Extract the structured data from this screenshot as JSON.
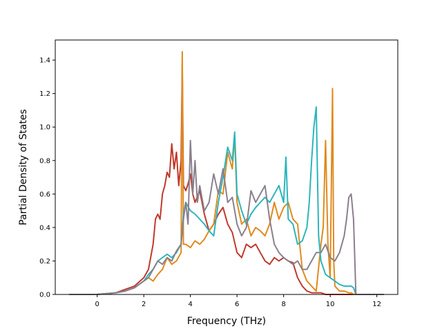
{
  "chart_data": {
    "type": "line",
    "title": "",
    "xlabel": "Frequency (THz)",
    "ylabel": "Partial Density of States",
    "xlim": [
      -1.8,
      12.9
    ],
    "ylim": [
      0.0,
      1.52
    ],
    "xticks": [
      0,
      2,
      4,
      6,
      8,
      10,
      12
    ],
    "yticks": [
      0.0,
      0.2,
      0.4,
      0.6,
      0.8,
      1.0,
      1.2,
      1.4
    ],
    "xtick_labels": [
      "0",
      "2",
      "4",
      "6",
      "8",
      "10",
      "12"
    ],
    "ytick_labels": [
      "0.0",
      "0.2",
      "0.4",
      "0.6",
      "0.8",
      "1.0",
      "1.2",
      "1.4"
    ],
    "grid": false,
    "legend": "none",
    "series": [
      {
        "color": "#c0392b",
        "x": [
          -1.2,
          0,
          0.8,
          1.2,
          1.6,
          2.0,
          2.2,
          2.4,
          2.5,
          2.6,
          2.7,
          2.8,
          2.9,
          3.0,
          3.1,
          3.2,
          3.3,
          3.4,
          3.5,
          3.6,
          3.65,
          3.7,
          3.8,
          3.9,
          4.0,
          4.1,
          4.2,
          4.4,
          4.6,
          4.8,
          5.0,
          5.2,
          5.4,
          5.6,
          5.8,
          6.0,
          6.2,
          6.4,
          6.6,
          6.8,
          7.0,
          7.2,
          7.4,
          7.6,
          7.8,
          8.0,
          8.2,
          8.4,
          8.6,
          8.8,
          9.0,
          9.2,
          9.4,
          9.6,
          9.8,
          10.0,
          10.2,
          10.4,
          10.6,
          10.8,
          10.9,
          11.0,
          11.2,
          12.3
        ],
        "y": [
          0.0,
          0.0,
          0.01,
          0.03,
          0.05,
          0.1,
          0.15,
          0.3,
          0.45,
          0.48,
          0.45,
          0.6,
          0.65,
          0.73,
          0.7,
          0.9,
          0.75,
          0.85,
          0.65,
          0.8,
          1.38,
          0.65,
          0.62,
          0.66,
          0.72,
          0.6,
          0.55,
          0.62,
          0.48,
          0.38,
          0.42,
          0.48,
          0.52,
          0.42,
          0.37,
          0.25,
          0.22,
          0.3,
          0.28,
          0.3,
          0.25,
          0.2,
          0.18,
          0.22,
          0.2,
          0.22,
          0.2,
          0.19,
          0.1,
          0.05,
          0.02,
          0.01,
          0.01,
          0.01,
          0.0,
          0.0,
          0.0,
          0.0,
          0.0,
          0.0,
          0.0,
          0.0,
          0.0,
          0.0
        ]
      },
      {
        "color": "#e08a1e",
        "x": [
          -1.2,
          0,
          0.8,
          1.2,
          1.6,
          2.0,
          2.2,
          2.4,
          2.6,
          2.8,
          3.0,
          3.2,
          3.4,
          3.6,
          3.65,
          3.7,
          3.8,
          4.0,
          4.2,
          4.4,
          4.6,
          4.8,
          5.0,
          5.2,
          5.4,
          5.6,
          5.8,
          5.9,
          6.0,
          6.2,
          6.4,
          6.6,
          6.8,
          7.0,
          7.2,
          7.4,
          7.6,
          7.8,
          8.0,
          8.2,
          8.4,
          8.6,
          8.8,
          9.0,
          9.2,
          9.4,
          9.6,
          9.7,
          9.8,
          9.9,
          10.0,
          10.1,
          10.15,
          10.2,
          10.4,
          10.6,
          10.8,
          10.9,
          11.0,
          11.2,
          12.3
        ],
        "y": [
          0.0,
          0.0,
          0.01,
          0.02,
          0.04,
          0.08,
          0.1,
          0.08,
          0.12,
          0.15,
          0.22,
          0.18,
          0.2,
          0.25,
          1.45,
          0.3,
          0.3,
          0.28,
          0.32,
          0.3,
          0.33,
          0.38,
          0.42,
          0.62,
          0.6,
          0.85,
          0.75,
          0.95,
          0.55,
          0.42,
          0.45,
          0.35,
          0.4,
          0.38,
          0.35,
          0.42,
          0.55,
          0.45,
          0.52,
          0.55,
          0.45,
          0.42,
          0.15,
          0.08,
          0.05,
          0.02,
          0.3,
          0.4,
          0.92,
          0.3,
          0.1,
          1.23,
          0.2,
          0.05,
          0.02,
          0.02,
          0.01,
          0.01,
          0.0,
          0.0,
          0.0
        ]
      },
      {
        "color": "#2bb5bd",
        "x": [
          -1.2,
          0,
          0.8,
          1.2,
          1.6,
          2.0,
          2.2,
          2.4,
          2.6,
          2.8,
          3.0,
          3.2,
          3.4,
          3.6,
          3.7,
          3.8,
          4.0,
          4.2,
          4.4,
          4.6,
          4.8,
          5.0,
          5.2,
          5.4,
          5.6,
          5.8,
          5.9,
          6.0,
          6.2,
          6.4,
          6.6,
          6.8,
          7.0,
          7.2,
          7.4,
          7.6,
          7.8,
          8.0,
          8.1,
          8.2,
          8.4,
          8.6,
          8.8,
          9.0,
          9.1,
          9.2,
          9.3,
          9.4,
          9.5,
          9.6,
          9.8,
          10.0,
          10.2,
          10.4,
          10.6,
          10.8,
          10.9,
          11.0,
          11.1,
          12.3
        ],
        "y": [
          0.0,
          0.0,
          0.01,
          0.02,
          0.04,
          0.08,
          0.12,
          0.15,
          0.2,
          0.22,
          0.24,
          0.22,
          0.25,
          0.3,
          0.48,
          0.55,
          0.5,
          0.48,
          0.45,
          0.42,
          0.38,
          0.35,
          0.55,
          0.7,
          0.88,
          0.8,
          0.97,
          0.6,
          0.5,
          0.42,
          0.48,
          0.52,
          0.55,
          0.58,
          0.55,
          0.6,
          0.65,
          0.55,
          0.82,
          0.45,
          0.42,
          0.3,
          0.32,
          0.4,
          0.55,
          0.8,
          1.0,
          1.12,
          0.35,
          0.2,
          0.12,
          0.1,
          0.08,
          0.06,
          0.05,
          0.05,
          0.05,
          0.04,
          0.0,
          0.0
        ]
      },
      {
        "color": "#8a7f8d",
        "x": [
          -1.2,
          0,
          0.8,
          1.2,
          1.6,
          2.0,
          2.2,
          2.4,
          2.6,
          2.8,
          3.0,
          3.2,
          3.4,
          3.6,
          3.7,
          3.8,
          3.9,
          4.0,
          4.1,
          4.2,
          4.3,
          4.4,
          4.6,
          4.8,
          5.0,
          5.2,
          5.4,
          5.6,
          5.8,
          6.0,
          6.2,
          6.4,
          6.6,
          6.8,
          7.0,
          7.2,
          7.4,
          7.6,
          7.8,
          8.0,
          8.2,
          8.4,
          8.6,
          8.8,
          9.0,
          9.2,
          9.4,
          9.6,
          9.8,
          10.0,
          10.2,
          10.4,
          10.6,
          10.7,
          10.8,
          10.9,
          11.0,
          11.1,
          12.3
        ],
        "y": [
          0.0,
          0.0,
          0.01,
          0.02,
          0.04,
          0.08,
          0.1,
          0.15,
          0.2,
          0.18,
          0.22,
          0.2,
          0.26,
          0.3,
          0.45,
          0.55,
          0.42,
          0.92,
          0.6,
          0.8,
          0.55,
          0.65,
          0.5,
          0.55,
          0.72,
          0.6,
          0.75,
          0.55,
          0.58,
          0.42,
          0.35,
          0.4,
          0.62,
          0.55,
          0.6,
          0.65,
          0.45,
          0.3,
          0.25,
          0.22,
          0.2,
          0.18,
          0.2,
          0.15,
          0.15,
          0.2,
          0.25,
          0.25,
          0.3,
          0.22,
          0.2,
          0.25,
          0.35,
          0.45,
          0.58,
          0.6,
          0.45,
          0.0,
          0.0
        ]
      }
    ]
  }
}
